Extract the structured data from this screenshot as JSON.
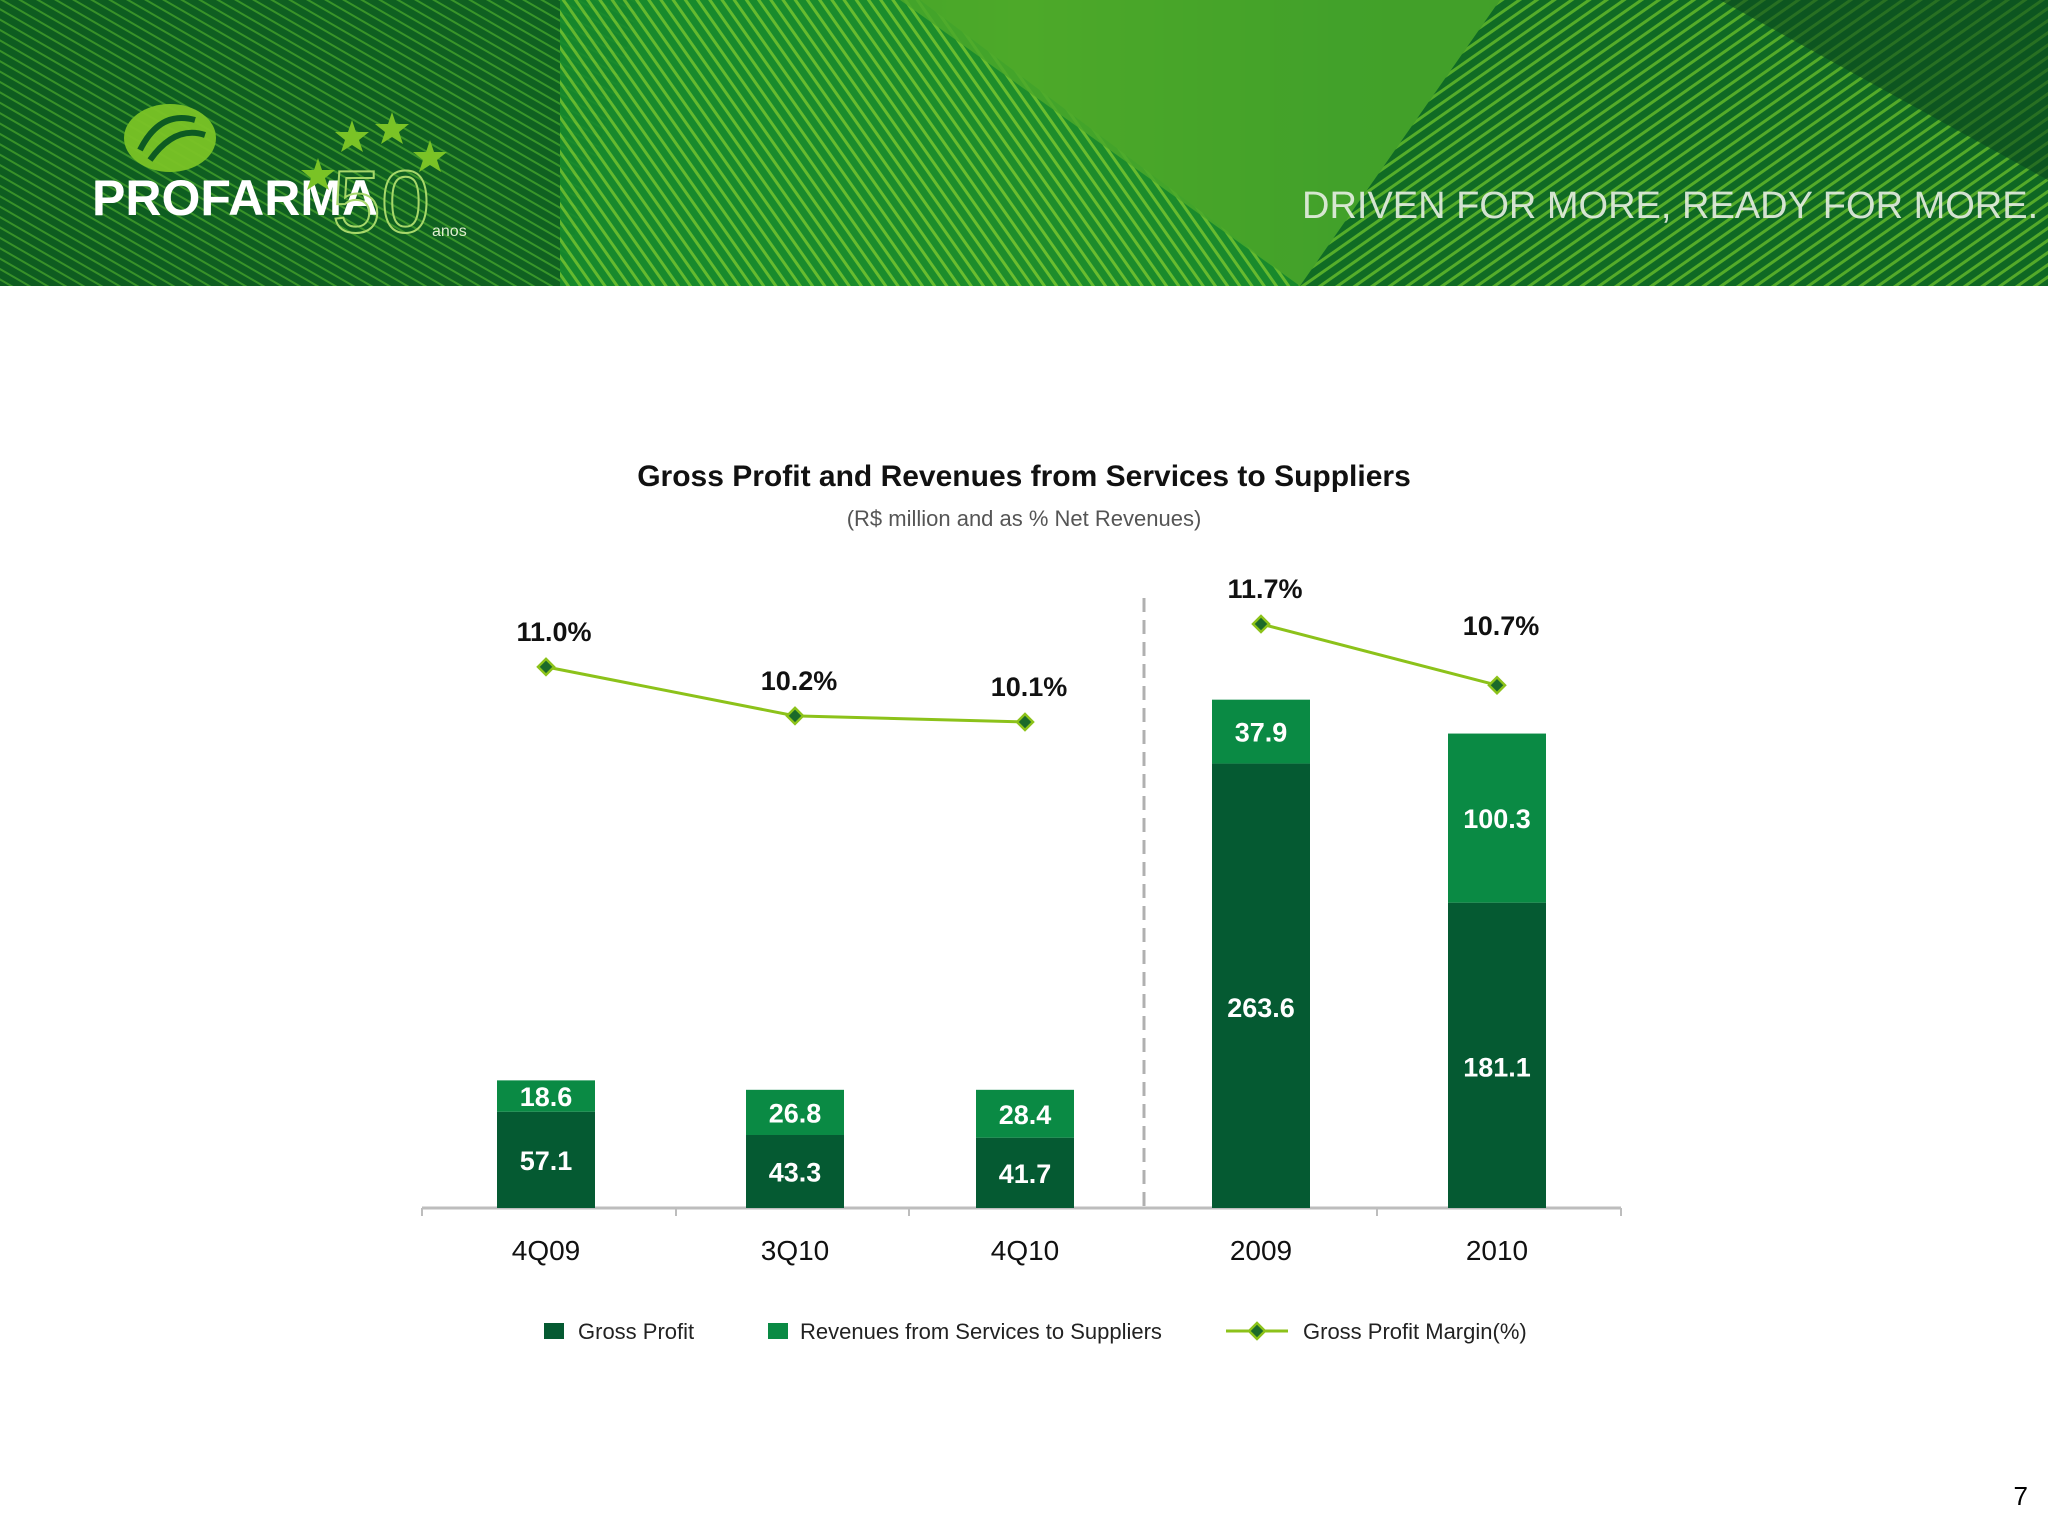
{
  "header": {
    "logo_text": "PROFARMA",
    "logo_anniversary": "50",
    "logo_anniversary_suffix": "anos",
    "tagline": "DRIVEN FOR MORE, READY FOR MORE."
  },
  "page_number": "7",
  "colors": {
    "gross_profit": "#055a32",
    "revenues_services": "#0a8a44",
    "margin_line": "#8cc21a",
    "banner_dark": "#0b4a1e",
    "banner_light": "#7ac326"
  },
  "chart_data": {
    "type": "bar",
    "stacked": true,
    "title": "Gross Profit and Revenues from Services to Suppliers",
    "subtitle": "(R$ million and as % Net Revenues)",
    "categories": [
      "4Q09",
      "3Q10",
      "4Q10",
      "2009",
      "2010"
    ],
    "groups": [
      [
        "4Q09",
        "3Q10",
        "4Q10"
      ],
      [
        "2009",
        "2010"
      ]
    ],
    "series": [
      {
        "name": "Gross Profit",
        "values": [
          57.1,
          43.3,
          41.7,
          263.6,
          181.1
        ],
        "color": "#055a32"
      },
      {
        "name": "Revenues from Services to Suppliers",
        "values": [
          18.6,
          26.8,
          28.4,
          37.9,
          100.3
        ],
        "color": "#0a8a44"
      }
    ],
    "line_series": {
      "name": "Gross Profit Margin(%)",
      "values": [
        11.0,
        10.2,
        10.1,
        11.7,
        10.7
      ],
      "labels": [
        "11.0%",
        "10.2%",
        "10.1%",
        "11.7%",
        "10.7%"
      ],
      "color": "#8cc21a",
      "marker": "diamond"
    },
    "data_labels": {
      "gross_profit": [
        "57.1",
        "43.3",
        "41.7",
        "263.6",
        "181.1"
      ],
      "revenues_services": [
        "18.6",
        "26.8",
        "28.4",
        "37.9",
        "100.3"
      ]
    },
    "legend": [
      "Gross Profit",
      "Revenues from Services to Suppliers",
      "Gross Profit Margin(%)"
    ],
    "legend_position": "bottom",
    "separator": "dashed vertical line between 4Q10 and 2009",
    "grid": false,
    "y_axis_visible": false
  }
}
